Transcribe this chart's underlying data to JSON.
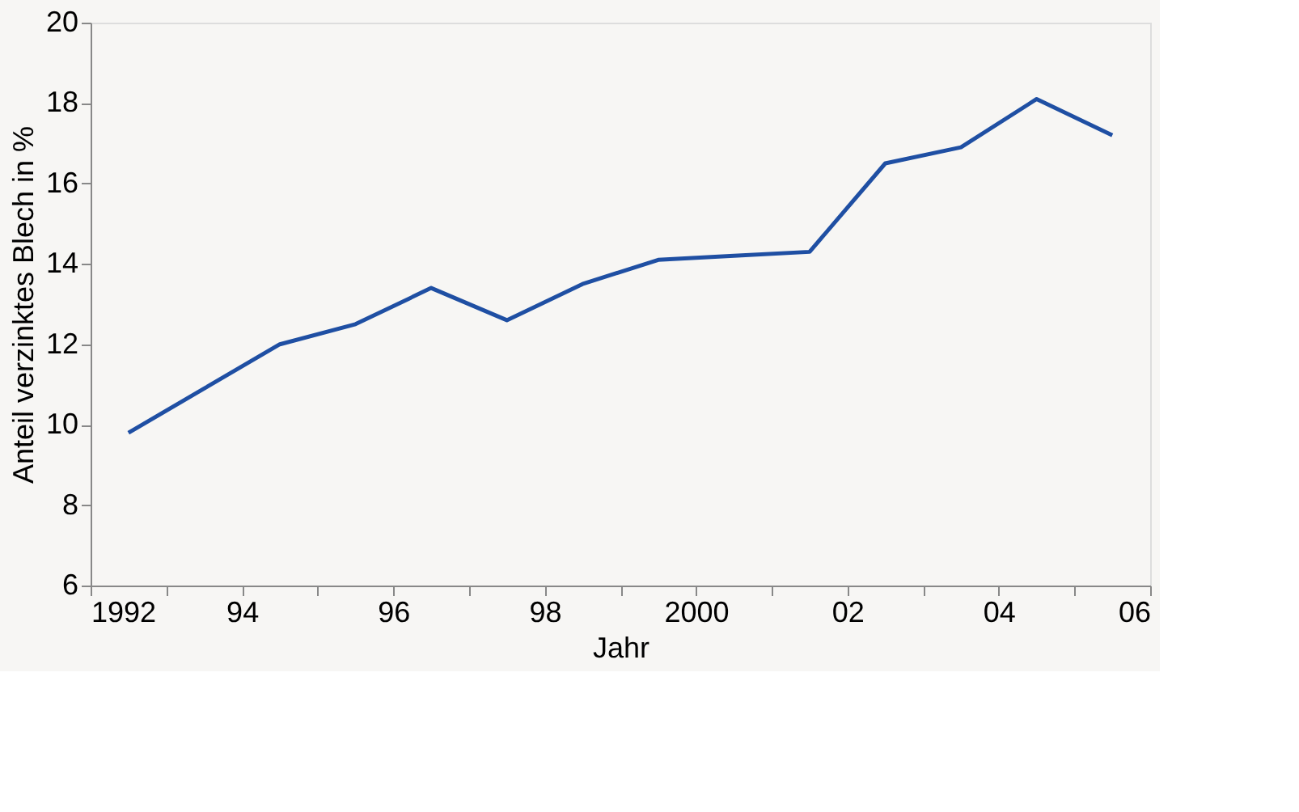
{
  "chart_data": {
    "type": "line",
    "xlabel": "Jahr",
    "ylabel": "Anteil verzinktes Blech in %",
    "x": [
      1992.5,
      1993.5,
      1994.5,
      1995.5,
      1996.5,
      1997.5,
      1998.5,
      1999.5,
      2000.5,
      2001.5,
      2002.5,
      2003.5,
      2004.5,
      2005.5
    ],
    "series": [
      {
        "color": "#1f4fa3",
        "values": [
          9.8,
          10.9,
          12.0,
          12.5,
          13.4,
          12.6,
          13.5,
          14.1,
          14.2,
          14.3,
          16.5,
          16.9,
          18.1,
          17.2
        ]
      }
    ],
    "xlim": [
      1992,
      2006
    ],
    "xticks": [
      {
        "value": 1992,
        "label": "1992"
      },
      {
        "value": 1993,
        "label": null
      },
      {
        "value": 1994,
        "label": "94"
      },
      {
        "value": 1995,
        "label": null
      },
      {
        "value": 1996,
        "label": "96"
      },
      {
        "value": 1997,
        "label": null
      },
      {
        "value": 1998,
        "label": "98"
      },
      {
        "value": 1999,
        "label": null
      },
      {
        "value": 2000,
        "label": "2000"
      },
      {
        "value": 2001,
        "label": null
      },
      {
        "value": 2002,
        "label": "02"
      },
      {
        "value": 2003,
        "label": null
      },
      {
        "value": 2004,
        "label": "04"
      },
      {
        "value": 2005,
        "label": null
      },
      {
        "value": 2006,
        "label": "06"
      }
    ],
    "ylim": [
      6,
      20
    ],
    "yticks": [
      6,
      8,
      10,
      12,
      14,
      16,
      18,
      20
    ],
    "grid": false,
    "marker": "none",
    "line_style": "solid"
  }
}
